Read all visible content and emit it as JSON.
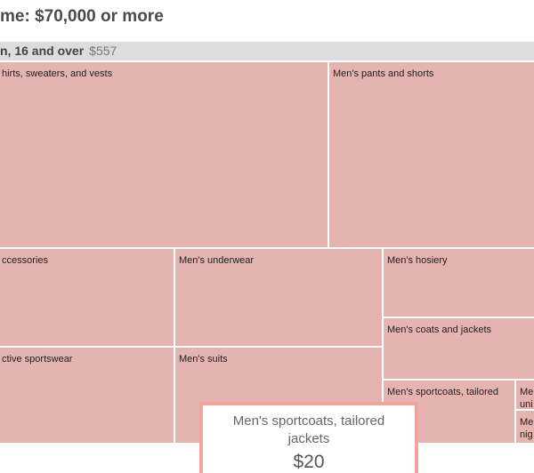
{
  "header": {
    "title": "me: $70,000 or more"
  },
  "group": {
    "label": "n, 16 and over",
    "value": "$557"
  },
  "cells": [
    {
      "label": "hirts, sweaters, and vests"
    },
    {
      "label": "Men's pants and shorts"
    },
    {
      "label": "ccessories"
    },
    {
      "label": "Men's underwear"
    },
    {
      "label": "Men's hosiery"
    },
    {
      "label": "Men's coats and jackets"
    },
    {
      "label": "ctive sportswear"
    },
    {
      "label": "Men's suits"
    },
    {
      "label": "Men's sportcoats, tailored"
    },
    {
      "lines": [
        "Me",
        "uni"
      ]
    },
    {
      "lines": [
        "Me",
        "nig"
      ]
    }
  ],
  "tooltip": {
    "label": "Men's sportcoats, tailored jackets",
    "value": "$20"
  }
}
